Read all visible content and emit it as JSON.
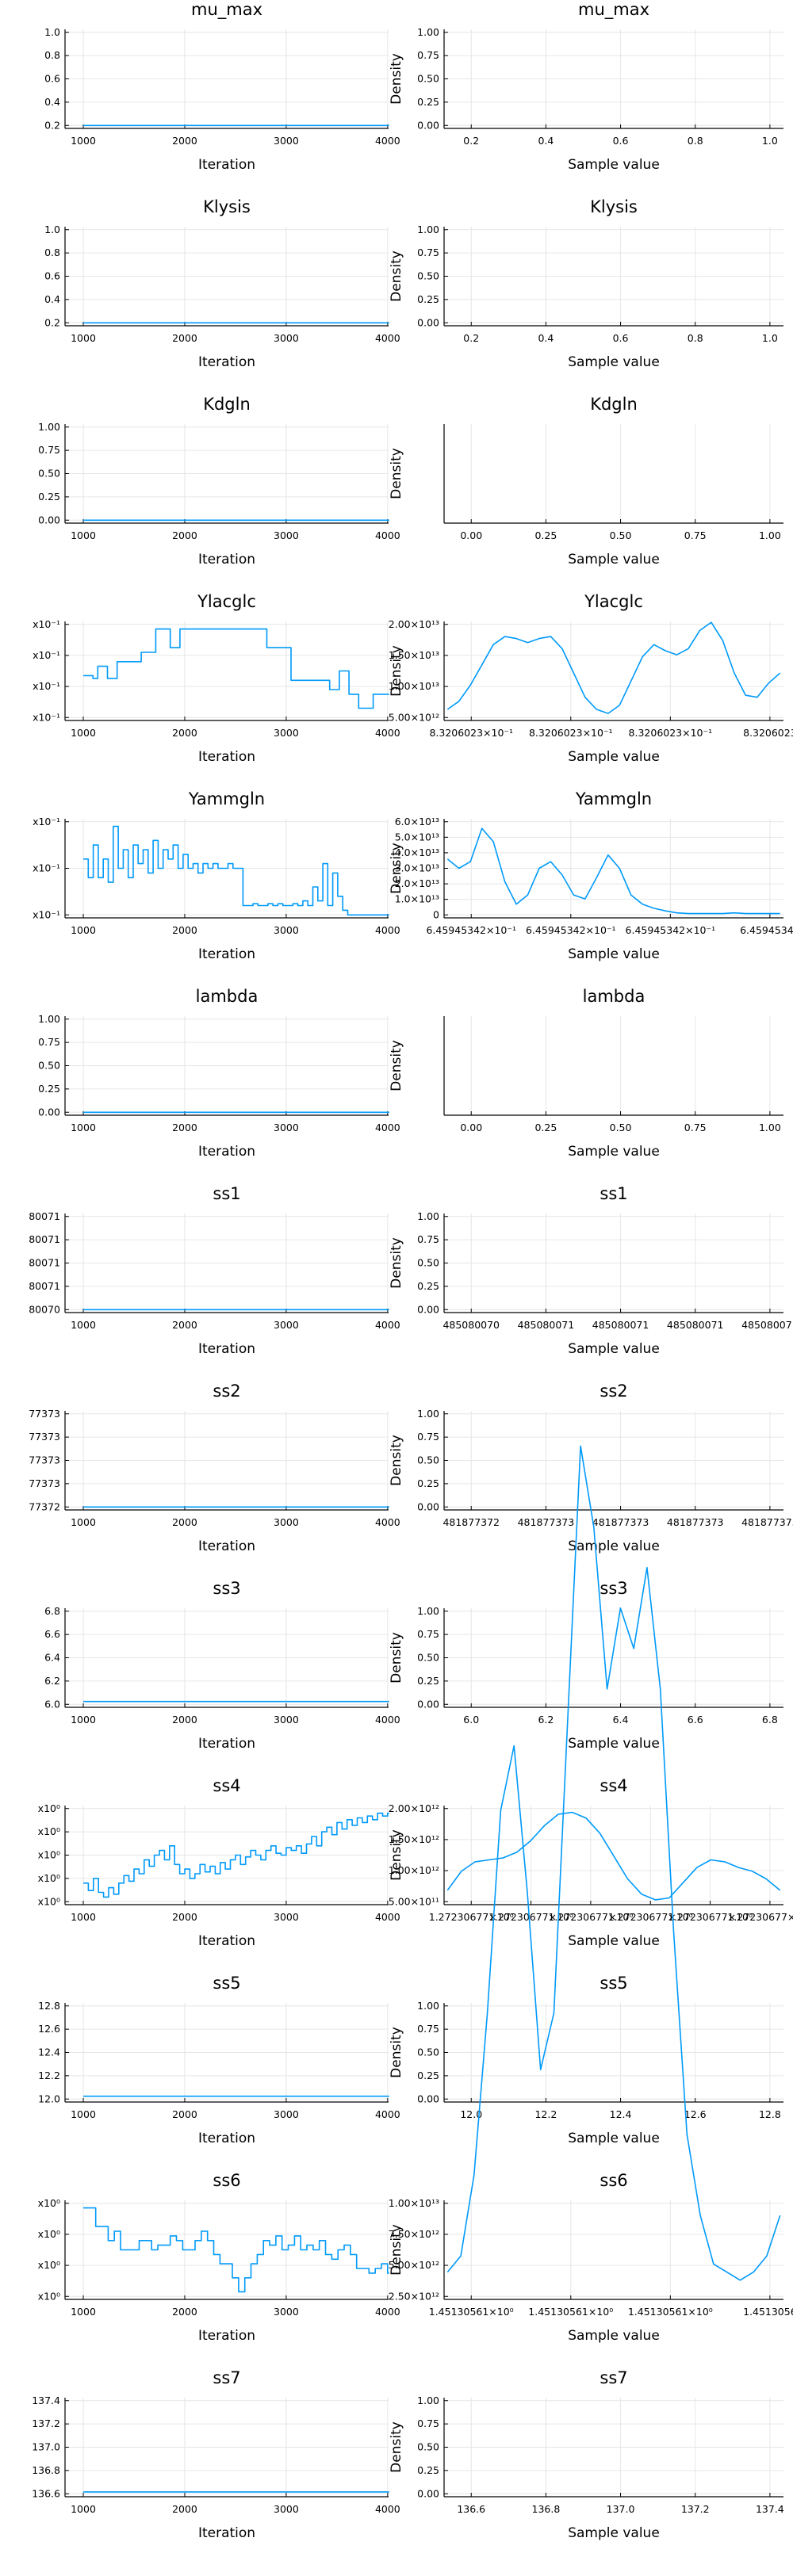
{
  "figure": {
    "series_color": "#009AFA",
    "x_label": "Iteration",
    "density_x_label": "Sample value",
    "density_y_label": "Density"
  },
  "chart_data": [
    {
      "parameter": "mu_max",
      "trace": {
        "type": "line",
        "title": "mu_max",
        "xlabel": "Iteration",
        "x_ticks": [
          "1000",
          "2000",
          "3000",
          "4000"
        ],
        "y_ticks": [
          "0.2",
          "0.4",
          "0.6",
          "0.8",
          "1.0"
        ],
        "xlim": [
          1000,
          4000
        ],
        "ylim": [
          0,
          1.0
        ],
        "values": [
          0.0,
          0.0
        ]
      },
      "density": {
        "type": "line",
        "title": "mu_max",
        "xlabel": "Sample value",
        "ylabel": "Density",
        "x_ticks": [
          "0.2",
          "0.4",
          "0.6",
          "0.8",
          "1.0"
        ],
        "y_ticks": [
          "0.00",
          "0.25",
          "0.50",
          "0.75",
          "1.00"
        ],
        "ylim": [
          0,
          1.0
        ]
      }
    },
    {
      "parameter": "Klysis",
      "trace": {
        "type": "line",
        "title": "Klysis",
        "xlabel": "Iteration",
        "x_ticks": [
          "1000",
          "2000",
          "3000",
          "4000"
        ],
        "y_ticks": [
          "0.2",
          "0.4",
          "0.6",
          "0.8",
          "1.0"
        ],
        "xlim": [
          1000,
          4000
        ],
        "ylim": [
          0,
          1.0
        ],
        "values": [
          0.0,
          0.0
        ]
      },
      "density": {
        "type": "line",
        "title": "Klysis",
        "xlabel": "Sample value",
        "ylabel": "Density",
        "x_ticks": [
          "0.2",
          "0.4",
          "0.6",
          "0.8",
          "1.0"
        ],
        "y_ticks": [
          "0.00",
          "0.25",
          "0.50",
          "0.75",
          "1.00"
        ],
        "ylim": [
          0,
          1.0
        ]
      }
    },
    {
      "parameter": "Kdgln",
      "trace": {
        "type": "line",
        "title": "Kdgln",
        "xlabel": "Iteration",
        "x_ticks": [
          "1000",
          "2000",
          "3000",
          "4000"
        ],
        "y_ticks": [
          "0.00",
          "0.25",
          "0.50",
          "0.75",
          "1.00"
        ],
        "xlim": [
          1000,
          4000
        ],
        "ylim": [
          0,
          1.0
        ],
        "values": [
          0.0,
          0.0
        ]
      },
      "density": {
        "type": "line",
        "title": "Kdgln",
        "xlabel": "Sample value",
        "ylabel": "Density",
        "x_ticks": [
          "0.00",
          "0.25",
          "0.50",
          "0.75",
          "1.00"
        ],
        "y_ticks": [],
        "ylim": [
          0,
          1.0
        ]
      }
    },
    {
      "parameter": "Ylacglc",
      "trace": {
        "type": "line",
        "title": "Ylacglc",
        "xlabel": "Iteration",
        "x_ticks": [
          "1000",
          "2000",
          "3000",
          "4000"
        ],
        "y_ticks": [
          "x10⁻¹",
          "x10⁻¹",
          "x10⁻¹",
          "x10⁻¹"
        ],
        "xlim": [
          1000,
          4000
        ],
        "ylim": [
          0,
          1.0
        ],
        "values": [
          0.45,
          0.45,
          0.42,
          0.55,
          0.55,
          0.42,
          0.42,
          0.6,
          0.6,
          0.6,
          0.6,
          0.6,
          0.7,
          0.7,
          0.7,
          0.95,
          0.95,
          0.95,
          0.75,
          0.75,
          0.95,
          0.95,
          0.95,
          0.95,
          0.95,
          0.95,
          0.95,
          0.95,
          0.95,
          0.95,
          0.95,
          0.95,
          0.95,
          0.95,
          0.95,
          0.95,
          0.95,
          0.95,
          0.75,
          0.75,
          0.75,
          0.75,
          0.75,
          0.4,
          0.4,
          0.4,
          0.4,
          0.4,
          0.4,
          0.4,
          0.4,
          0.3,
          0.3,
          0.5,
          0.5,
          0.25,
          0.25,
          0.1,
          0.1,
          0.1,
          0.25,
          0.25,
          0.25,
          0.25
        ]
      },
      "density": {
        "type": "line",
        "title": "Ylacglc",
        "xlabel": "Sample value",
        "ylabel": "Density",
        "x_ticks": [
          "8.3206023×10⁻¹",
          "8.3206023×10⁻¹",
          "8.3206023×10⁻¹",
          "8.3206023"
        ],
        "y_ticks": [
          "5.00×10¹²",
          "1.00×10¹³",
          "1.50×10¹³",
          "2.00×10¹³"
        ],
        "ylim": [
          0,
          23000000000000.0
        ],
        "values": [
          0.2,
          0.4,
          0.8,
          1.3,
          1.8,
          2.0,
          1.95,
          1.85,
          1.95,
          2.0,
          1.7,
          1.1,
          0.5,
          0.2,
          0.1,
          0.3,
          0.9,
          1.5,
          1.8,
          1.65,
          1.55,
          1.7,
          2.15,
          2.35,
          1.9,
          1.1,
          0.55,
          0.5,
          0.85,
          1.1
        ]
      }
    },
    {
      "parameter": "Yammgln",
      "trace": {
        "type": "line",
        "title": "Yammgln",
        "xlabel": "Iteration",
        "x_ticks": [
          "1000",
          "2000",
          "3000",
          "4000"
        ],
        "y_ticks": [
          "x10⁻¹",
          "x10⁻¹",
          "x10⁻¹"
        ],
        "xlim": [
          1000,
          4000
        ],
        "ylim": [
          0,
          1.0
        ],
        "values": [
          0.6,
          0.4,
          0.75,
          0.4,
          0.6,
          0.35,
          0.95,
          0.5,
          0.7,
          0.4,
          0.75,
          0.55,
          0.7,
          0.45,
          0.8,
          0.5,
          0.7,
          0.6,
          0.75,
          0.5,
          0.65,
          0.5,
          0.55,
          0.45,
          0.55,
          0.5,
          0.55,
          0.5,
          0.5,
          0.55,
          0.5,
          0.5,
          0.1,
          0.1,
          0.12,
          0.1,
          0.1,
          0.12,
          0.1,
          0.12,
          0.1,
          0.1,
          0.12,
          0.1,
          0.15,
          0.1,
          0.3,
          0.15,
          0.55,
          0.1,
          0.45,
          0.2,
          0.05,
          0.0,
          0.0,
          0.0,
          0.0,
          0.0,
          0.0,
          0.0,
          0.0,
          0.0
        ]
      },
      "density": {
        "type": "line",
        "title": "Yammgln",
        "xlabel": "Sample value",
        "ylabel": "Density",
        "x_ticks": [
          "6.45945342×10⁻¹",
          "6.45945342×10⁻¹",
          "6.45945342×10⁻¹",
          "6.45945342"
        ],
        "y_ticks": [
          "0",
          "1.0×10¹³",
          "2.0×10¹³",
          "3.0×10¹³",
          "4.0×10¹³",
          "5.0×10¹³",
          "6.0×10¹³"
        ],
        "ylim": [
          0,
          70000000000000.0
        ],
        "values": [
          4.2,
          3.5,
          4.0,
          6.5,
          5.5,
          2.5,
          0.8,
          1.5,
          3.5,
          4.0,
          3.0,
          1.5,
          1.2,
          2.8,
          4.5,
          3.5,
          1.5,
          0.8,
          0.5,
          0.3,
          0.15,
          0.1,
          0.1,
          0.1,
          0.1,
          0.15,
          0.1,
          0.1,
          0.1,
          0.1
        ]
      }
    },
    {
      "parameter": "lambda",
      "trace": {
        "type": "line",
        "title": "lambda",
        "xlabel": "Iteration",
        "x_ticks": [
          "1000",
          "2000",
          "3000",
          "4000"
        ],
        "y_ticks": [
          "0.00",
          "0.25",
          "0.50",
          "0.75",
          "1.00"
        ],
        "xlim": [
          1000,
          4000
        ],
        "ylim": [
          0,
          1.0
        ],
        "values": [
          0.0,
          0.0
        ]
      },
      "density": {
        "type": "line",
        "title": "lambda",
        "xlabel": "Sample value",
        "ylabel": "Density",
        "x_ticks": [
          "0.00",
          "0.25",
          "0.50",
          "0.75",
          "1.00"
        ],
        "y_ticks": [],
        "ylim": [
          0,
          1.0
        ]
      }
    },
    {
      "parameter": "ss1",
      "trace": {
        "type": "line",
        "title": "ss1",
        "xlabel": "Iteration",
        "x_ticks": [
          "1000",
          "2000",
          "3000",
          "4000"
        ],
        "y_ticks": [
          "80070",
          "80071",
          "80071",
          "80071",
          "80071"
        ],
        "xlim": [
          1000,
          4000
        ],
        "ylim": [
          0,
          1.0
        ],
        "values": [
          0.0,
          0.0
        ]
      },
      "density": {
        "type": "line",
        "title": "ss1",
        "xlabel": "Sample value",
        "ylabel": "Density",
        "x_ticks": [
          "485080070",
          "485080071",
          "485080071",
          "485080071",
          "485080071"
        ],
        "y_ticks": [
          "0.00",
          "0.25",
          "0.50",
          "0.75",
          "1.00"
        ],
        "ylim": [
          0,
          1.0
        ]
      }
    },
    {
      "parameter": "ss2",
      "trace": {
        "type": "line",
        "title": "ss2",
        "xlabel": "Iteration",
        "x_ticks": [
          "1000",
          "2000",
          "3000",
          "4000"
        ],
        "y_ticks": [
          "77372",
          "77373",
          "77373",
          "77373",
          "77373"
        ],
        "xlim": [
          1000,
          4000
        ],
        "ylim": [
          0,
          1.0
        ],
        "values": [
          0.0,
          0.0
        ]
      },
      "density": {
        "type": "line",
        "title": "ss2",
        "xlabel": "Sample value",
        "ylabel": "Density",
        "x_ticks": [
          "481877372",
          "481877373",
          "481877373",
          "481877373",
          "481877373"
        ],
        "y_ticks": [
          "0.00",
          "0.25",
          "0.50",
          "0.75",
          "1.00"
        ],
        "ylim": [
          0,
          1.0
        ]
      }
    },
    {
      "parameter": "ss3",
      "trace": {
        "type": "line",
        "title": "ss3",
        "xlabel": "Iteration",
        "x_ticks": [
          "1000",
          "2000",
          "3000",
          "4000"
        ],
        "y_ticks": [
          "6.0",
          "6.2",
          "6.4",
          "6.6",
          "6.8"
        ],
        "xlim": [
          1000,
          4000
        ],
        "ylim": [
          5.9,
          6.9
        ],
        "values": [
          5.93,
          5.93
        ]
      },
      "density": {
        "type": "line",
        "title": "ss3",
        "xlabel": "Sample value",
        "ylabel": "Density",
        "x_ticks": [
          "6.0",
          "6.2",
          "6.4",
          "6.6",
          "6.8"
        ],
        "y_ticks": [
          "0.00",
          "0.25",
          "0.50",
          "0.75",
          "1.00"
        ],
        "ylim": [
          0,
          1.0
        ]
      }
    },
    {
      "parameter": "ss4",
      "trace": {
        "type": "line",
        "title": "ss4",
        "xlabel": "Iteration",
        "x_ticks": [
          "1000",
          "2000",
          "3000",
          "4000"
        ],
        "y_ticks": [
          "x10⁰",
          "x10⁰",
          "x10⁰",
          "x10⁰",
          "x10⁰"
        ],
        "xlim": [
          1000,
          4000
        ],
        "ylim": [
          0,
          1.0
        ],
        "values": [
          0.2,
          0.12,
          0.25,
          0.1,
          0.05,
          0.15,
          0.08,
          0.2,
          0.28,
          0.22,
          0.35,
          0.3,
          0.45,
          0.38,
          0.5,
          0.55,
          0.45,
          0.6,
          0.4,
          0.3,
          0.35,
          0.25,
          0.3,
          0.4,
          0.32,
          0.38,
          0.3,
          0.42,
          0.35,
          0.45,
          0.5,
          0.4,
          0.48,
          0.55,
          0.5,
          0.45,
          0.55,
          0.6,
          0.52,
          0.5,
          0.58,
          0.55,
          0.6,
          0.52,
          0.62,
          0.7,
          0.6,
          0.75,
          0.8,
          0.72,
          0.85,
          0.78,
          0.88,
          0.82,
          0.9,
          0.85,
          0.92,
          0.88,
          0.95,
          0.92,
          0.95
        ]
      },
      "density": {
        "type": "line",
        "title": "ss4",
        "xlabel": "Sample value",
        "ylabel": "Density",
        "x_ticks": [
          "1.27230677×10⁰",
          "1.27230677×10⁰",
          "1.27230677×10⁰",
          "1.27230677×10⁰",
          "1.27230677×10⁰",
          "1.27230677×10⁰"
        ],
        "y_ticks": [
          "5.00×10¹¹",
          "1.00×10¹²",
          "1.50×10¹²",
          "2.00×10¹²"
        ],
        "ylim": [
          0,
          2450000000000.0
        ],
        "values": [
          0.3,
          0.8,
          1.05,
          1.1,
          1.15,
          1.3,
          1.6,
          2.0,
          2.3,
          2.35,
          2.2,
          1.8,
          1.2,
          0.6,
          0.2,
          0.05,
          0.1,
          0.5,
          0.9,
          1.1,
          1.05,
          0.9,
          0.8,
          0.6,
          0.3
        ]
      }
    },
    {
      "parameter": "ss5",
      "trace": {
        "type": "line",
        "title": "ss5",
        "xlabel": "Iteration",
        "x_ticks": [
          "1000",
          "2000",
          "3000",
          "4000"
        ],
        "y_ticks": [
          "12.0",
          "12.2",
          "12.4",
          "12.6",
          "12.8"
        ],
        "xlim": [
          1000,
          4000
        ],
        "ylim": [
          11.9,
          12.9
        ],
        "values": [
          11.93,
          11.93
        ]
      },
      "density": {
        "type": "line",
        "title": "ss5",
        "xlabel": "Sample value",
        "ylabel": "Density",
        "x_ticks": [
          "12.0",
          "12.2",
          "12.4",
          "12.6",
          "12.8"
        ],
        "y_ticks": [
          "0.00",
          "0.25",
          "0.50",
          "0.75",
          "1.00"
        ],
        "ylim": [
          0,
          1.0
        ]
      }
    },
    {
      "parameter": "ss6",
      "trace": {
        "type": "line",
        "title": "ss6",
        "xlabel": "Iteration",
        "x_ticks": [
          "1000",
          "2000",
          "3000",
          "4000"
        ],
        "y_ticks": [
          "x10⁰",
          "x10⁰",
          "x10⁰",
          "x10⁰"
        ],
        "xlim": [
          1000,
          4000
        ],
        "ylim": [
          0,
          1.0
        ],
        "values": [
          0.95,
          0.95,
          0.75,
          0.75,
          0.6,
          0.7,
          0.5,
          0.5,
          0.5,
          0.6,
          0.6,
          0.5,
          0.55,
          0.55,
          0.65,
          0.6,
          0.5,
          0.5,
          0.6,
          0.7,
          0.6,
          0.45,
          0.35,
          0.35,
          0.2,
          0.05,
          0.2,
          0.35,
          0.45,
          0.6,
          0.55,
          0.65,
          0.5,
          0.55,
          0.65,
          0.5,
          0.55,
          0.5,
          0.6,
          0.45,
          0.4,
          0.5,
          0.55,
          0.45,
          0.3,
          0.3,
          0.25,
          0.3,
          0.35,
          0.25
        ]
      },
      "density": {
        "type": "line",
        "title": "ss6",
        "xlabel": "Sample value",
        "ylabel": "Density",
        "x_ticks": [
          "1.45130561×10⁰",
          "1.45130561×10⁰",
          "1.45130561×10⁰",
          "1.4513056"
        ],
        "y_ticks": [
          "2.50×10¹²",
          "5.00×10¹²",
          "7.50×10¹²",
          "1.00×10¹³"
        ],
        "ylim": [
          0,
          11500000000000.0
        ],
        "values": [
          0.3,
          0.5,
          1.5,
          3.5,
          6.0,
          6.8,
          5.0,
          2.8,
          3.5,
          7.0,
          10.5,
          9.5,
          7.5,
          8.5,
          8.0,
          9.0,
          7.5,
          4.5,
          2.0,
          1.0,
          0.4,
          0.3,
          0.2,
          0.3,
          0.5,
          1.0
        ]
      }
    },
    {
      "parameter": "ss7",
      "trace": {
        "type": "line",
        "title": "ss7",
        "xlabel": "Iteration",
        "x_ticks": [
          "1000",
          "2000",
          "3000",
          "4000"
        ],
        "y_ticks": [
          "136.6",
          "136.8",
          "137.0",
          "137.2",
          "137.4"
        ],
        "xlim": [
          1000,
          4000
        ],
        "ylim": [
          136.5,
          137.5
        ],
        "values": [
          136.52,
          136.52
        ]
      },
      "density": {
        "type": "line",
        "title": "ss7",
        "xlabel": "Sample value",
        "ylabel": "Density",
        "x_ticks": [
          "136.6",
          "136.8",
          "137.0",
          "137.2",
          "137.4"
        ],
        "y_ticks": [
          "0.00",
          "0.25",
          "0.50",
          "0.75",
          "1.00"
        ],
        "ylim": [
          0,
          1.0
        ]
      }
    }
  ]
}
